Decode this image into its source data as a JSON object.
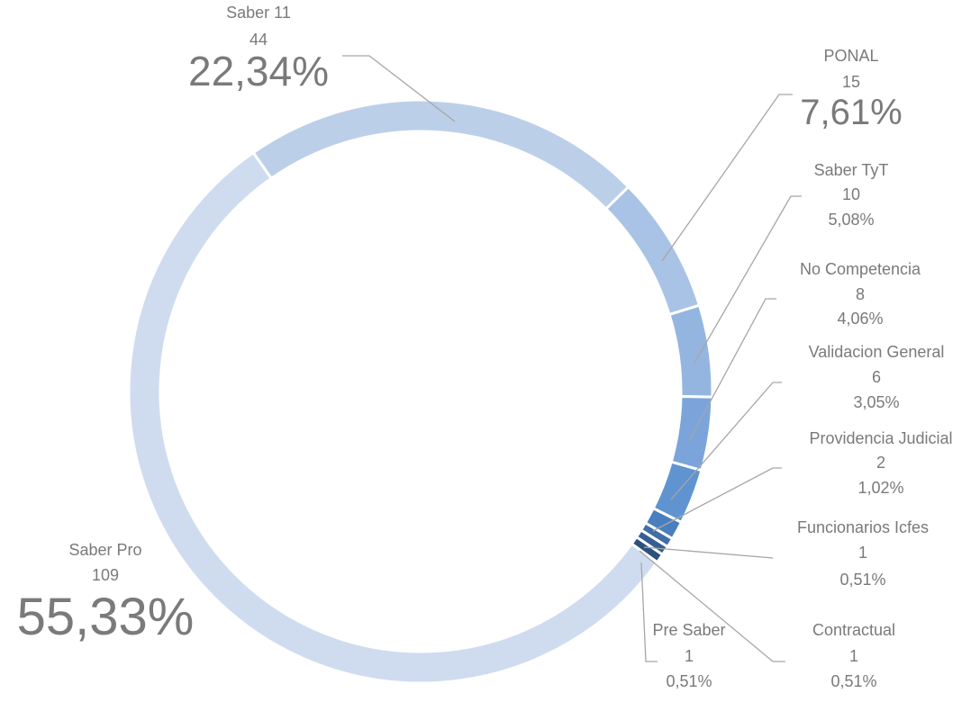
{
  "chart_data": {
    "type": "donut",
    "categories": [
      "Saber 11",
      "PONAL",
      "Saber TyT",
      "No Competencia",
      "Validacion General",
      "Providencia Judicial",
      "Funcionarios Icfes",
      "Contractual",
      "Pre Saber",
      "Saber Pro"
    ],
    "counts": [
      44,
      15,
      10,
      8,
      6,
      2,
      1,
      1,
      1,
      109
    ],
    "values": [
      22.34,
      7.61,
      5.08,
      4.06,
      3.05,
      1.02,
      0.51,
      0.51,
      0.51,
      55.33
    ],
    "value_labels": [
      "22,34%",
      "7,61%",
      "5,08%",
      "4,06%",
      "3,05%",
      "1,02%",
      "0,51%",
      "0,51%",
      "0,51%",
      "55,33%"
    ],
    "colors": [
      "#bccfe9",
      "#a9c3e6",
      "#93b5e0",
      "#7ba5da",
      "#5f94d0",
      "#4a7fbf",
      "#3f6ea8",
      "#355f92",
      "#2c517d",
      "#cfdcef"
    ]
  }
}
